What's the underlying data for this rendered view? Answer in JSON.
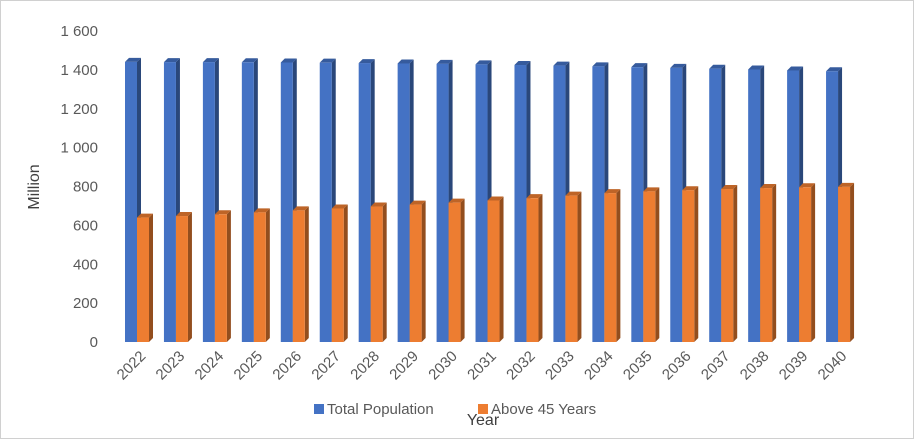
{
  "chart_data": {
    "type": "bar",
    "style": "3d-clustered-column",
    "title": "",
    "xlabel": "Year",
    "ylabel": "Million",
    "ylim": [
      0,
      1600
    ],
    "yticks": [
      "0",
      "200",
      "400",
      "600",
      "800",
      "1 000",
      "1 200",
      "1 400",
      "1 600"
    ],
    "categories": [
      "2022",
      "2023",
      "2024",
      "2025",
      "2026",
      "2027",
      "2028",
      "2029",
      "2030",
      "2031",
      "2032",
      "2033",
      "2034",
      "2035",
      "2036",
      "2037",
      "2038",
      "2039",
      "2040"
    ],
    "series": [
      {
        "name": "Total Population",
        "color": "#4472C4",
        "values": [
          1441,
          1440,
          1440,
          1439,
          1438,
          1437,
          1435,
          1433,
          1431,
          1428,
          1425,
          1422,
          1418,
          1414,
          1410,
          1406,
          1402,
          1397,
          1393
        ]
      },
      {
        "name": "Above 45 Years",
        "color": "#ED7D31",
        "values": [
          640,
          648,
          657,
          667,
          677,
          687,
          697,
          707,
          717,
          728,
          740,
          753,
          766,
          775,
          781,
          787,
          792,
          796,
          798
        ]
      }
    ],
    "grid": false,
    "legend_position": "bottom"
  }
}
